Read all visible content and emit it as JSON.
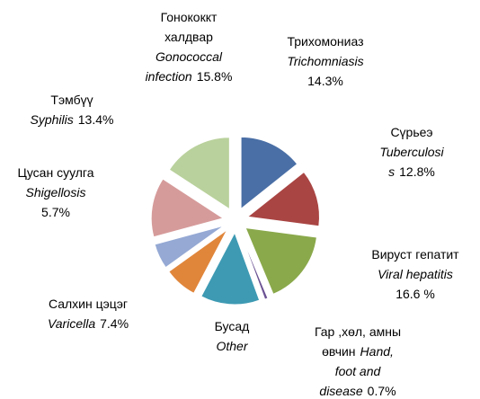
{
  "chart_data": {
    "type": "pie",
    "categories": [
      {
        "mn": [
          "Трихомониаз"
        ],
        "en": [
          "Trichomniasis"
        ]
      },
      {
        "mn": [
          "Сүрьеэ"
        ],
        "en": [
          "Tuberculosi",
          "s"
        ]
      },
      {
        "mn": [
          "Вируст гепатит"
        ],
        "en": [
          "Viral hepatitis"
        ]
      },
      {
        "mn": [
          "Гар ,хөл, амны",
          "өвчин"
        ],
        "en": [
          "Hand,",
          "foot and",
          "disease"
        ]
      },
      {
        "mn": [
          "Бусад"
        ],
        "en": [
          "Other"
        ]
      },
      {
        "mn": [
          "Салхин цэцэг"
        ],
        "en": [
          "Varicella"
        ]
      },
      {
        "mn": [
          "Цусан суулга"
        ],
        "en": [
          "Shigellosis"
        ]
      },
      {
        "mn": [
          "Тэмбүү"
        ],
        "en": [
          "Syphilis"
        ]
      },
      {
        "mn": [
          "Гонококкт",
          "халдвар"
        ],
        "en": [
          "Gonococcal",
          "infection"
        ]
      }
    ],
    "values": [
      14.3,
      12.8,
      16.6,
      0.7,
      13.3,
      7.4,
      5.7,
      13.4,
      15.8
    ],
    "value_labels": [
      "14.3%",
      "12.8%",
      "16.6 %",
      "0.7%",
      null,
      "7.4%",
      "5.7%",
      "13.4%",
      "15.8%"
    ],
    "colors": [
      "#4a6fa6",
      "#a94543",
      "#8aa94b",
      "#6b5293",
      "#3e9ab3",
      "#e0863b",
      "#95a9d4",
      "#d59b9a",
      "#b9d19c"
    ]
  }
}
